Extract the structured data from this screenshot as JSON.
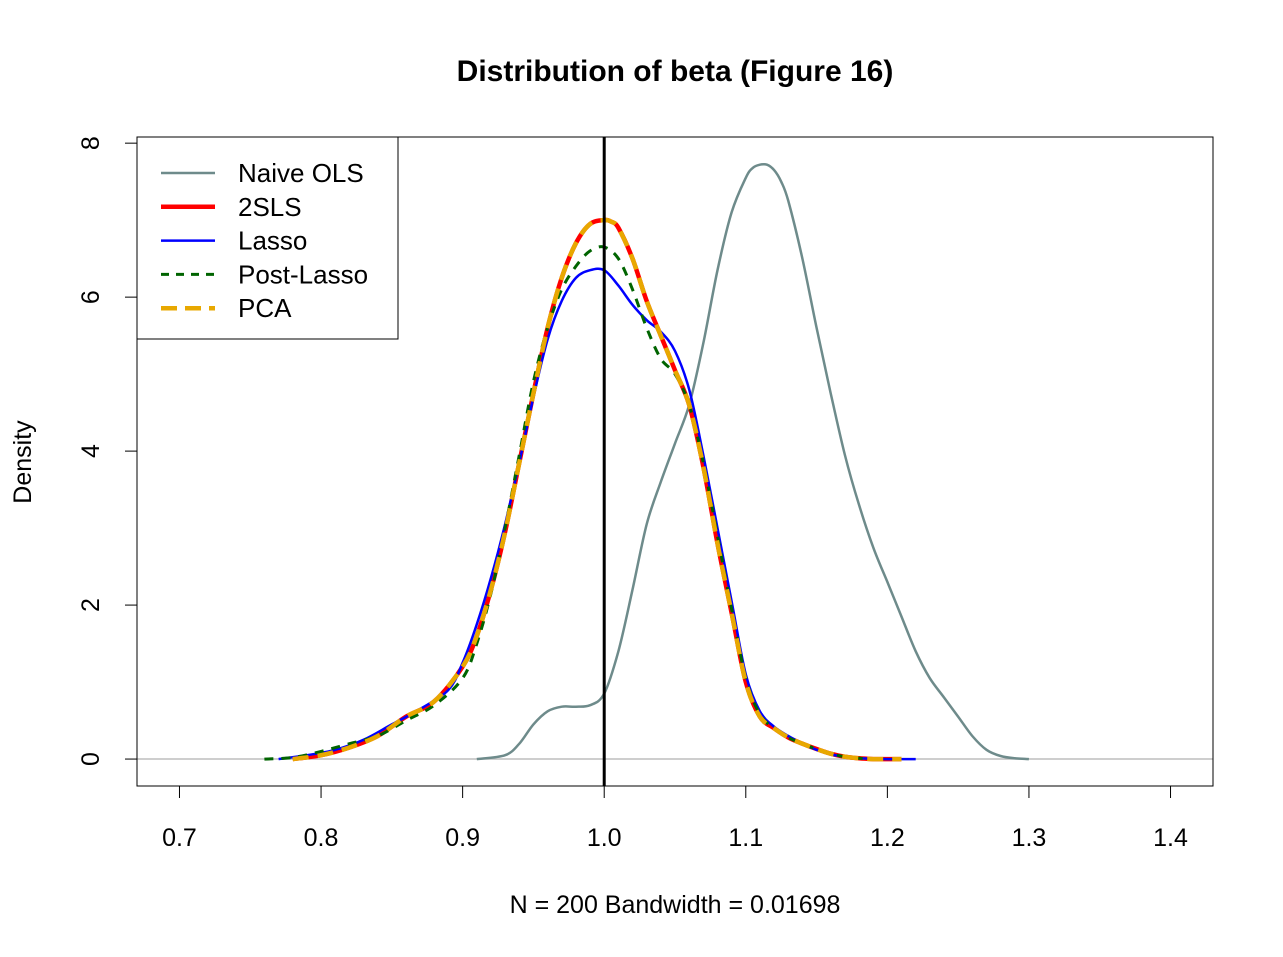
{
  "chart_data": {
    "type": "line",
    "title": "Distribution of beta (Figure 16)",
    "xlabel": "N = 200   Bandwidth = 0.01698",
    "ylabel": "Density",
    "xlim": [
      0.67,
      1.43
    ],
    "ylim": [
      -0.35,
      8.08
    ],
    "xticks": [
      "0.7",
      "0.8",
      "0.9",
      "1.0",
      "1.1",
      "1.2",
      "1.3",
      "1.4"
    ],
    "xtick_values": [
      0.7,
      0.8,
      0.9,
      1.0,
      1.1,
      1.2,
      1.3,
      1.4
    ],
    "yticks": [
      "0",
      "2",
      "4",
      "6",
      "8"
    ],
    "ytick_values": [
      0,
      2,
      4,
      6,
      8
    ],
    "vline": {
      "x": 1.0,
      "color": "#000000"
    },
    "baseline": {
      "y": 0,
      "color": "#bebebe"
    },
    "grid": false,
    "legend_position": "top-left",
    "series": [
      {
        "name": "Naive OLS",
        "color": "#6e8b8b",
        "style": "solid",
        "width": 2.5,
        "x": [
          0.91,
          0.93,
          0.94,
          0.95,
          0.96,
          0.97,
          0.98,
          0.99,
          1.0,
          1.01,
          1.02,
          1.03,
          1.04,
          1.05,
          1.06,
          1.07,
          1.08,
          1.09,
          1.1,
          1.105,
          1.11,
          1.115,
          1.12,
          1.125,
          1.13,
          1.14,
          1.15,
          1.16,
          1.17,
          1.18,
          1.19,
          1.2,
          1.21,
          1.22,
          1.23,
          1.24,
          1.25,
          1.26,
          1.27,
          1.28,
          1.29,
          1.3
        ],
        "y": [
          0.0,
          0.05,
          0.2,
          0.45,
          0.62,
          0.68,
          0.68,
          0.7,
          0.85,
          1.4,
          2.2,
          3.05,
          3.6,
          4.1,
          4.6,
          5.4,
          6.35,
          7.1,
          7.55,
          7.68,
          7.72,
          7.72,
          7.65,
          7.5,
          7.25,
          6.5,
          5.6,
          4.75,
          3.95,
          3.3,
          2.75,
          2.3,
          1.85,
          1.4,
          1.05,
          0.8,
          0.55,
          0.3,
          0.12,
          0.04,
          0.01,
          0.0
        ]
      },
      {
        "name": "2SLS",
        "color": "#ff0000",
        "style": "solid",
        "width": 4.5,
        "x": [
          0.78,
          0.8,
          0.82,
          0.84,
          0.86,
          0.88,
          0.9,
          0.91,
          0.92,
          0.93,
          0.94,
          0.95,
          0.96,
          0.97,
          0.98,
          0.99,
          1.0,
          1.005,
          1.01,
          1.02,
          1.03,
          1.04,
          1.05,
          1.06,
          1.07,
          1.08,
          1.09,
          1.1,
          1.11,
          1.12,
          1.13,
          1.14,
          1.15,
          1.16,
          1.17,
          1.18,
          1.19,
          1.2,
          1.21
        ],
        "y": [
          0.0,
          0.05,
          0.15,
          0.3,
          0.55,
          0.75,
          1.2,
          1.6,
          2.2,
          2.95,
          3.85,
          4.75,
          5.6,
          6.25,
          6.7,
          6.95,
          7.0,
          6.98,
          6.9,
          6.5,
          5.95,
          5.5,
          5.05,
          4.6,
          3.8,
          2.8,
          1.9,
          1.0,
          0.55,
          0.4,
          0.28,
          0.2,
          0.13,
          0.07,
          0.03,
          0.01,
          0.0,
          0.0,
          0.0
        ]
      },
      {
        "name": "Lasso",
        "color": "#0000ff",
        "style": "solid",
        "width": 2.5,
        "x": [
          0.77,
          0.79,
          0.81,
          0.83,
          0.85,
          0.87,
          0.89,
          0.9,
          0.91,
          0.92,
          0.93,
          0.94,
          0.95,
          0.96,
          0.97,
          0.98,
          0.99,
          1.0,
          1.01,
          1.02,
          1.03,
          1.04,
          1.05,
          1.06,
          1.07,
          1.08,
          1.09,
          1.1,
          1.11,
          1.12,
          1.13,
          1.14,
          1.15,
          1.16,
          1.17,
          1.18,
          1.2,
          1.22
        ],
        "y": [
          0.0,
          0.05,
          0.12,
          0.25,
          0.45,
          0.65,
          0.9,
          1.25,
          1.75,
          2.35,
          3.05,
          3.85,
          4.7,
          5.45,
          5.95,
          6.25,
          6.35,
          6.35,
          6.15,
          5.9,
          5.7,
          5.55,
          5.3,
          4.8,
          3.95,
          3.0,
          2.05,
          1.1,
          0.62,
          0.42,
          0.3,
          0.2,
          0.12,
          0.06,
          0.03,
          0.01,
          0.0,
          0.0
        ]
      },
      {
        "name": "Post-Lasso",
        "color": "#006400",
        "style": "dashed",
        "width": 3,
        "x": [
          0.76,
          0.78,
          0.8,
          0.82,
          0.84,
          0.86,
          0.88,
          0.9,
          0.91,
          0.92,
          0.93,
          0.94,
          0.95,
          0.96,
          0.97,
          0.98,
          0.99,
          1.0,
          1.01,
          1.02,
          1.03,
          1.04,
          1.05,
          1.06,
          1.07,
          1.08,
          1.09,
          1.1,
          1.11,
          1.12,
          1.13,
          1.14,
          1.15,
          1.16,
          1.17,
          1.18,
          1.2
        ],
        "y": [
          0.0,
          0.02,
          0.1,
          0.2,
          0.3,
          0.5,
          0.7,
          1.05,
          1.5,
          2.15,
          3.0,
          3.95,
          4.9,
          5.6,
          6.1,
          6.4,
          6.6,
          6.65,
          6.5,
          6.1,
          5.6,
          5.2,
          5.0,
          4.6,
          3.85,
          2.9,
          1.95,
          1.05,
          0.58,
          0.4,
          0.28,
          0.2,
          0.13,
          0.07,
          0.03,
          0.01,
          0.0
        ]
      },
      {
        "name": "PCA",
        "color": "#e8a800",
        "style": "dashed",
        "width": 4.5,
        "x": [
          0.78,
          0.8,
          0.82,
          0.84,
          0.86,
          0.88,
          0.9,
          0.91,
          0.92,
          0.93,
          0.94,
          0.95,
          0.96,
          0.97,
          0.98,
          0.99,
          1.0,
          1.005,
          1.01,
          1.02,
          1.03,
          1.04,
          1.05,
          1.06,
          1.07,
          1.08,
          1.09,
          1.1,
          1.11,
          1.12,
          1.13,
          1.14,
          1.15,
          1.16,
          1.17,
          1.18,
          1.19,
          1.2,
          1.21
        ],
        "y": [
          0.0,
          0.05,
          0.15,
          0.3,
          0.55,
          0.75,
          1.2,
          1.6,
          2.2,
          2.95,
          3.85,
          4.75,
          5.6,
          6.25,
          6.7,
          6.95,
          7.0,
          6.98,
          6.9,
          6.5,
          5.95,
          5.5,
          5.05,
          4.6,
          3.8,
          2.8,
          1.9,
          1.0,
          0.55,
          0.4,
          0.28,
          0.2,
          0.13,
          0.07,
          0.03,
          0.01,
          0.0,
          0.0,
          0.0
        ]
      }
    ]
  }
}
